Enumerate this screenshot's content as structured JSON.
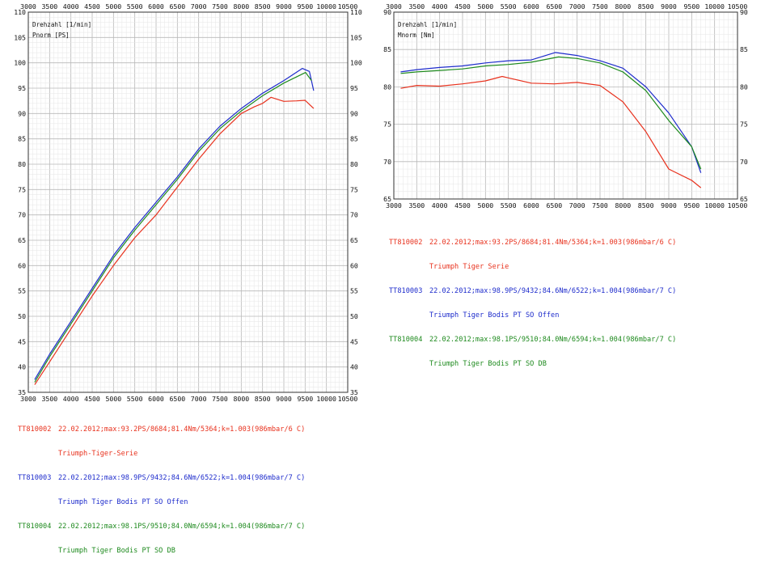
{
  "chart_data": [
    {
      "type": "line",
      "xlabel": "Drehzahl [1/min]",
      "ylabel": "Pnorm [PS]",
      "xlim": [
        3000,
        10500
      ],
      "ylim": [
        35,
        110
      ],
      "x_ticks": [
        "3000",
        "3500",
        "4000",
        "4500",
        "5000",
        "5500",
        "6000",
        "6500",
        "7000",
        "7500",
        "8000",
        "8500",
        "9000",
        "9500",
        "10000",
        "10500"
      ],
      "y_ticks": [
        "35",
        "40",
        "45",
        "50",
        "55",
        "60",
        "65",
        "70",
        "75",
        "80",
        "85",
        "90",
        "95",
        "100",
        "105",
        "110"
      ],
      "grid": true,
      "series": [
        {
          "name": "Triumph-Tiger-Serie",
          "color": "#e8321e",
          "x": [
            3150,
            3500,
            4000,
            4500,
            5000,
            5500,
            6000,
            6500,
            7000,
            7500,
            8000,
            8300,
            8500,
            8700,
            9000,
            9300,
            9500,
            9700
          ],
          "y": [
            36.5,
            41,
            47.5,
            54,
            60,
            65.5,
            70,
            75.5,
            81,
            86,
            90,
            91.3,
            92,
            93.2,
            92.4,
            92.5,
            92.6,
            91
          ]
        },
        {
          "name": "Triumph Tiger Bodis PT SO Offen",
          "color": "#1e2ccc",
          "x": [
            3150,
            3500,
            4000,
            4500,
            5000,
            5500,
            6000,
            6500,
            7000,
            7500,
            8000,
            8500,
            9000,
            9432,
            9600,
            9700
          ],
          "y": [
            37.5,
            42.5,
            49,
            55.5,
            62,
            67.5,
            72.5,
            77.5,
            83,
            87.5,
            91,
            94,
            96.5,
            98.9,
            98.3,
            94.5
          ]
        },
        {
          "name": "Triumph Tiger Bodis PT SO DB",
          "color": "#1e8a1e",
          "x": [
            3150,
            3500,
            4000,
            4500,
            5000,
            5500,
            6000,
            6500,
            7000,
            7500,
            8000,
            8500,
            9000,
            9510,
            9650
          ],
          "y": [
            37,
            42,
            48.5,
            55,
            61.5,
            67,
            72,
            77,
            82.5,
            87,
            90.5,
            93.5,
            96,
            98.1,
            96.5
          ]
        }
      ]
    },
    {
      "type": "line",
      "xlabel": "Drehzahl [1/min]",
      "ylabel": "Mnorm [Nm]",
      "xlim": [
        3000,
        10500
      ],
      "ylim": [
        65,
        90
      ],
      "x_ticks": [
        "3000",
        "3500",
        "4000",
        "4500",
        "5000",
        "5500",
        "6000",
        "6500",
        "7000",
        "7500",
        "8000",
        "8500",
        "9000",
        "9500",
        "10000",
        "10500"
      ],
      "y_ticks": [
        "65",
        "70",
        "75",
        "80",
        "85",
        "90"
      ],
      "grid": true,
      "series": [
        {
          "name": "Triumph Tiger Serie",
          "color": "#e8321e",
          "x": [
            3150,
            3500,
            4000,
            4500,
            5000,
            5364,
            5500,
            6000,
            6500,
            7000,
            7500,
            8000,
            8500,
            9000,
            9500,
            9700
          ],
          "y": [
            79.8,
            80.2,
            80.1,
            80.4,
            80.8,
            81.4,
            81.2,
            80.5,
            80.4,
            80.6,
            80.2,
            78,
            74,
            69,
            67.5,
            66.5
          ]
        },
        {
          "name": "Triumph Tiger Bodis PT SO Offen",
          "color": "#1e2ccc",
          "x": [
            3150,
            3500,
            4000,
            4500,
            5000,
            5500,
            6000,
            6522,
            7000,
            7500,
            8000,
            8500,
            9000,
            9500,
            9700
          ],
          "y": [
            82,
            82.3,
            82.6,
            82.8,
            83.2,
            83.5,
            83.6,
            84.6,
            84.2,
            83.5,
            82.5,
            80,
            76.5,
            72,
            68.5
          ]
        },
        {
          "name": "Triumph Tiger Bodis PT SO DB",
          "color": "#1e8a1e",
          "x": [
            3150,
            3500,
            4000,
            4500,
            5000,
            5500,
            6000,
            6594,
            7000,
            7500,
            8000,
            8500,
            9000,
            9500,
            9700
          ],
          "y": [
            81.8,
            82,
            82.2,
            82.4,
            82.8,
            83,
            83.3,
            84,
            83.8,
            83.2,
            82,
            79.5,
            75.5,
            72,
            69
          ]
        }
      ]
    }
  ],
  "legends": [
    {
      "rows": [
        {
          "id": "TT810002",
          "info": "22.02.2012;max:93.2PS/8684;81.4Nm/5364;k=1.003(986mbar/6 C)",
          "name": "Triumph-Tiger-Serie",
          "color": "#e8321e"
        },
        {
          "id": "TT810003",
          "info": "22.02.2012;max:98.9PS/9432;84.6Nm/6522;k=1.004(986mbar/7 C)",
          "name": "Triumph Tiger Bodis PT SO Offen",
          "color": "#1e2ccc"
        },
        {
          "id": "TT810004",
          "info": "22.02.2012;max:98.1PS/9510;84.0Nm/6594;k=1.004(986mbar/7 C)",
          "name": "Triumph Tiger Bodis PT SO DB",
          "color": "#1e8a1e"
        }
      ]
    },
    {
      "rows": [
        {
          "id": "TT810002",
          "info": "22.02.2012;max:93.2PS/8684;81.4Nm/5364;k=1.003(986mbar/6 C)",
          "name": "Triumph Tiger Serie",
          "color": "#e8321e"
        },
        {
          "id": "TT810003",
          "info": "22.02.2012;max:98.9PS/9432;84.6Nm/6522;k=1.004(986mbar/7 C)",
          "name": "Triumph Tiger Bodis PT SO Offen",
          "color": "#1e2ccc"
        },
        {
          "id": "TT810004",
          "info": "22.02.2012;max:98.1PS/9510;84.0Nm/6594;k=1.004(986mbar/7 C)",
          "name": "Triumph Tiger Bodis PT SO DB",
          "color": "#1e8a1e"
        }
      ]
    }
  ]
}
